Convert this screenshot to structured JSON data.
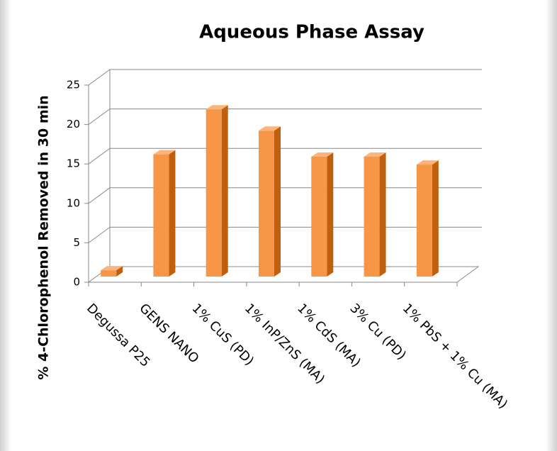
{
  "chart_data": {
    "type": "bar",
    "title": "Aqueous Phase Assay",
    "ylabel": "% 4-Chlorophenol Removed in 30 min",
    "categories": [
      "Degussa P25",
      "GENS NANO",
      "1% CuS (PD)",
      "1% InP/ZnS (MA)",
      "1% CdS (MA)",
      "3% Cu (PD)",
      "1% PbS + 1% Cu (MA)"
    ],
    "values": [
      0.8,
      15.5,
      21.2,
      18.5,
      15.2,
      15.2,
      14.2
    ],
    "color": "#f79646",
    "ylim": [
      0,
      25
    ],
    "yticks": [
      0,
      5,
      10,
      15,
      20,
      25
    ],
    "grid": true
  }
}
